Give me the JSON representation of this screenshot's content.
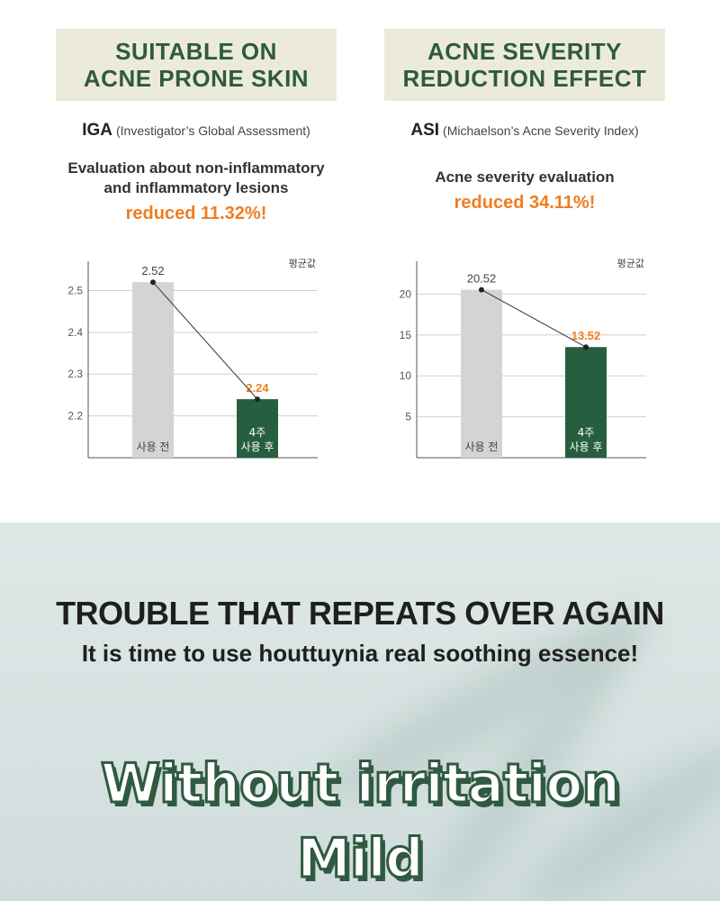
{
  "left_panel": {
    "header_line1": "SUITABLE ON",
    "header_line2": "ACNE PRONE SKIN",
    "index_abbr": "IGA",
    "index_full": "(Investigator’s Global Assessment)",
    "eval_line1": "Evaluation about non-inflammatory",
    "eval_line2": "and inflammatory lesions",
    "reduced": "reduced 11.32%!"
  },
  "right_panel": {
    "header_line1": "ACNE SEVERITY",
    "header_line2": "REDUCTION EFFECT",
    "index_abbr": "ASI",
    "index_full": "(Michaelson’s Acne Severity Index)",
    "eval_line1": "Acne severity evaluation",
    "reduced": "reduced 34.11%!"
  },
  "chart_data": [
    {
      "type": "bar",
      "unit_label": "평균값",
      "categories": [
        "사용 전",
        "4주\n사용 후"
      ],
      "values": [
        2.52,
        2.24
      ],
      "value_labels": [
        "2.52",
        "2.24"
      ],
      "ylim": [
        2.1,
        2.57
      ],
      "yticks": [
        2.2,
        2.3,
        2.4,
        2.5
      ],
      "ytick_labels": [
        "2.2",
        "2.3",
        "2.4",
        "2.5"
      ],
      "grid": true,
      "colors": [
        "#d4d4d4",
        "#265f3f"
      ],
      "label_colors": [
        "#444444",
        "#ef7d22"
      ]
    },
    {
      "type": "bar",
      "unit_label": "평균값",
      "categories": [
        "사용 전",
        "4주\n사용 후"
      ],
      "values": [
        20.52,
        13.52
      ],
      "value_labels": [
        "20.52",
        "13.52"
      ],
      "ylim": [
        0,
        24
      ],
      "yticks": [
        5,
        10,
        15,
        20
      ],
      "ytick_labels": [
        "5",
        "10",
        "15",
        "20"
      ],
      "grid": true,
      "colors": [
        "#d4d4d4",
        "#265f3f"
      ],
      "label_colors": [
        "#444444",
        "#ef7d22"
      ]
    }
  ],
  "bottom": {
    "headline": "TROUBLE THAT REPEATS OVER AGAIN",
    "subline": "It is time to use houttuynia real soothing essence!",
    "stylized_line1": "Without irritation",
    "stylized_line2": "Mild"
  }
}
